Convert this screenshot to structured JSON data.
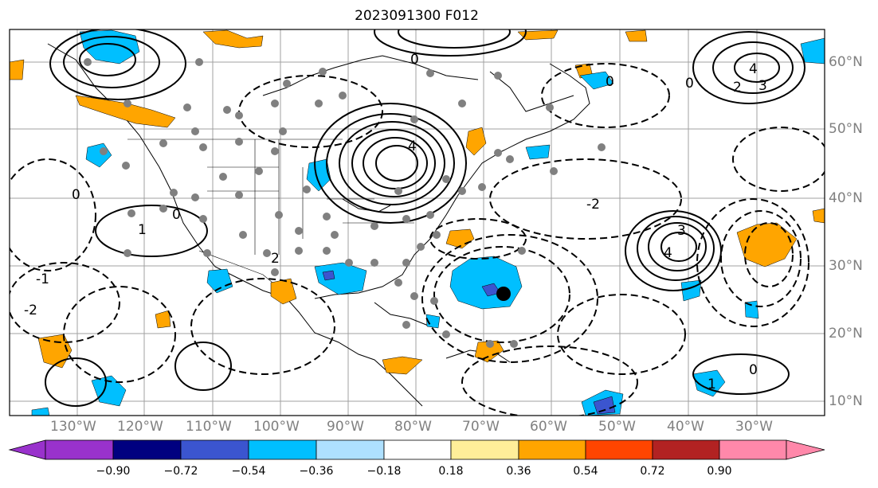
{
  "title": "2023091300 F012",
  "lon_labels": [
    "130°W",
    "120°W",
    "110°W",
    "100°W",
    "90°W",
    "80°W",
    "70°W",
    "60°W",
    "50°W",
    "40°W",
    "30°W"
  ],
  "lat_labels": [
    "60°N",
    "50°N",
    "40°N",
    "30°N",
    "20°N",
    "10°N"
  ],
  "colorbar": {
    "tick_labels": [
      "−0.90",
      "−0.72",
      "−0.54",
      "−0.36",
      "−0.18",
      "0.18",
      "0.36",
      "0.54",
      "0.72",
      "0.90"
    ],
    "colors": [
      "#9932cc",
      "#000080",
      "#3b55cf",
      "#00bfff",
      "#aee0ff",
      "#ffffff",
      "#ffee99",
      "#ffa500",
      "#ff4500",
      "#b22222",
      "#ff88aa"
    ]
  },
  "contour_labels": [
    "0",
    "1",
    "2",
    "3",
    "4",
    "-1",
    "-2"
  ],
  "colors": {
    "positive_fill": "#ffa500",
    "negative_fill": "#00bfff",
    "strong_negative": "#3b55cf",
    "grid": "#a0a0a0",
    "station": "#808080"
  }
}
